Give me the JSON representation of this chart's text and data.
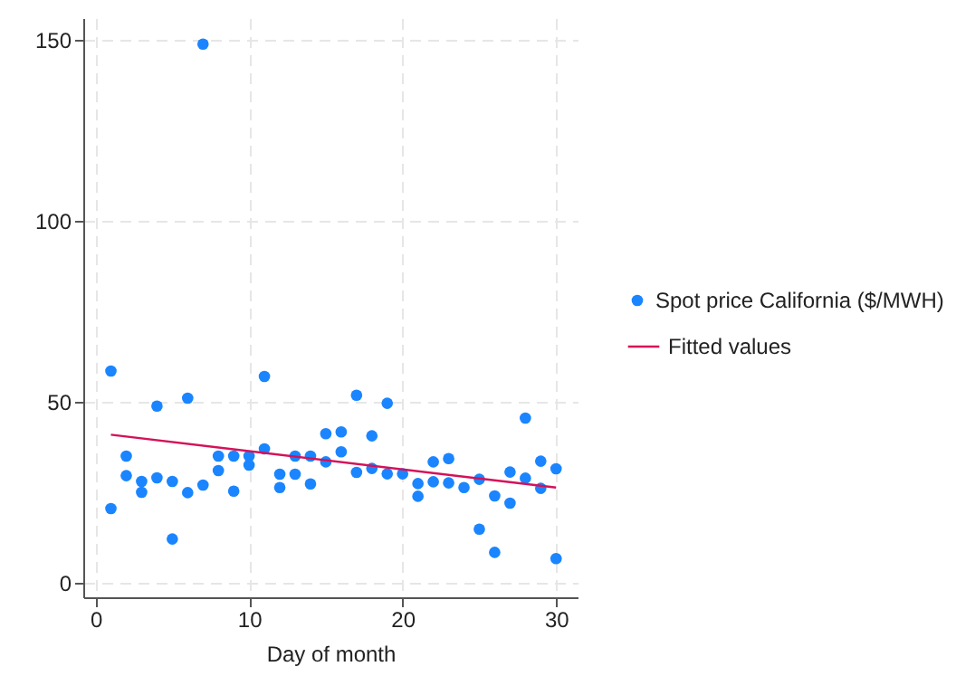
{
  "chart_data": {
    "type": "scatter",
    "xlabel": "Day of month",
    "xlim": [
      -0.8,
      31.4
    ],
    "ylim": [
      -4,
      156
    ],
    "xticks": [
      0,
      10,
      20,
      30
    ],
    "yticks": [
      0,
      50,
      100,
      150
    ],
    "grid": true,
    "legend": "right",
    "series": [
      {
        "name": "Spot price California ($/MWH)",
        "marker": "circle",
        "color": "#1a85ff",
        "x": [
          1,
          1,
          2,
          2,
          3,
          3,
          4,
          4,
          5,
          5,
          6,
          6,
          7,
          7,
          8,
          8,
          9,
          9,
          10,
          10,
          11,
          11,
          12,
          12,
          13,
          13,
          14,
          14,
          15,
          15,
          16,
          16,
          17,
          17,
          18,
          18,
          19,
          19,
          20,
          21,
          21,
          22,
          22,
          23,
          23,
          24,
          25,
          25,
          26,
          26,
          27,
          27,
          28,
          28,
          29,
          29,
          30,
          30
        ],
        "values": [
          58.5,
          20.5,
          35,
          29.6,
          28,
          25,
          48.8,
          29,
          28,
          12.1,
          51,
          24.9,
          27,
          148.8,
          35,
          31,
          35,
          25.3,
          35,
          32.5,
          57,
          37,
          30,
          26.3,
          35,
          30,
          35,
          27.3,
          41.2,
          33.4,
          41.7,
          36.2,
          51.8,
          30.5,
          40.6,
          31.6,
          49.6,
          30.1,
          30.1,
          27.4,
          23.9,
          33.4,
          27.9,
          34.3,
          27.6,
          26.3,
          28.6,
          14.8,
          24,
          8.4,
          30.6,
          22,
          45.5,
          28.9,
          33.6,
          26.1,
          31.5,
          6.7
        ]
      },
      {
        "name": "Fitted values",
        "type": "line",
        "color": "#d41159",
        "x": [
          1,
          30
        ],
        "values": [
          40.9,
          26.3
        ]
      }
    ]
  }
}
